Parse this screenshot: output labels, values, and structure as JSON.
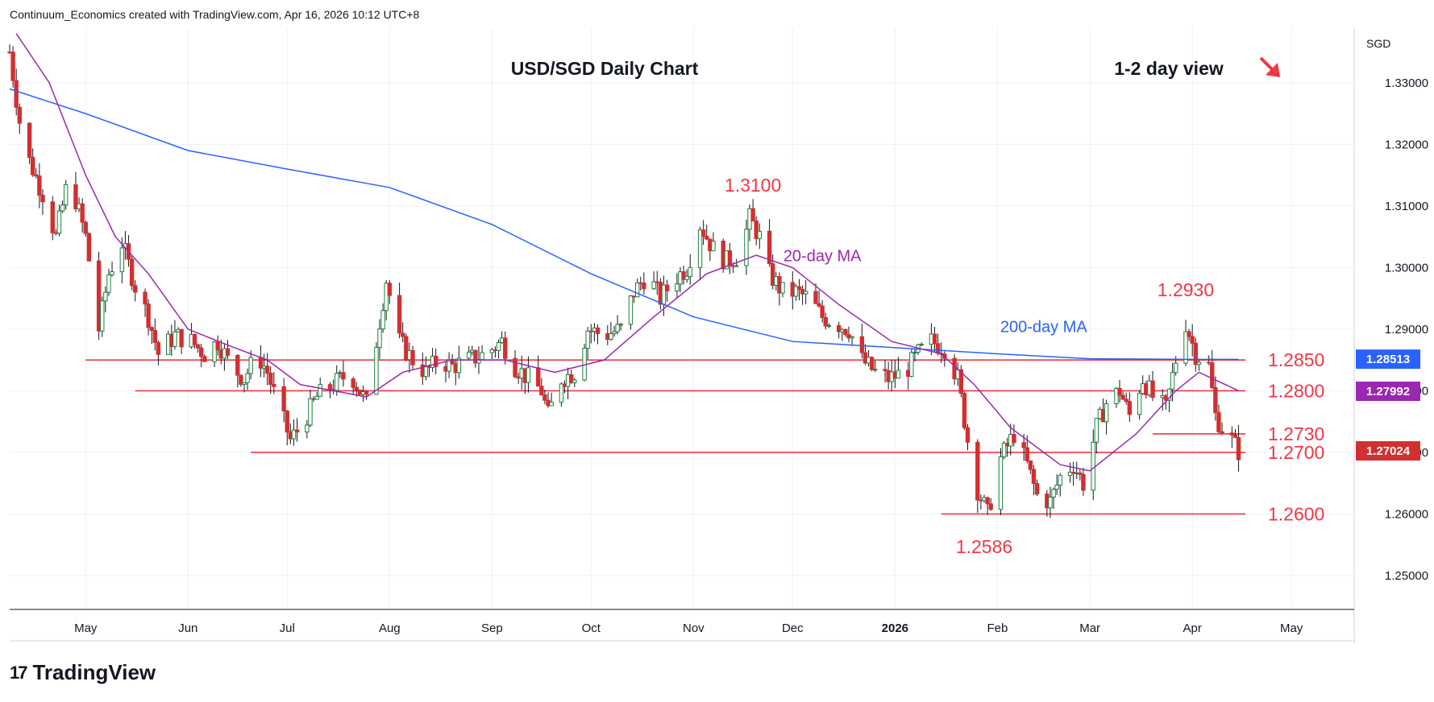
{
  "header": {
    "text": "Continuum_Economics created with TradingView.com, Apr 16, 2026 10:12 UTC+8"
  },
  "brand": {
    "name": "TradingView",
    "icon": "tradingview-logo-icon"
  },
  "colors": {
    "up": "#ffffff",
    "down": "#d32f2f",
    "wick": "#131722",
    "ma20": "#9c27b0",
    "ma200": "#2962ff",
    "level": "#f23645",
    "annotation": "#f23645"
  },
  "chart_data": {
    "type": "candlestick",
    "title": "USD/SGD Daily Chart",
    "view_label": "1-2 day view",
    "view_arrow": "down-right-arrow-icon",
    "currency": "SGD",
    "ylim": [
      1.2445,
      1.339
    ],
    "y_ticks": [
      "1.33000",
      "1.32000",
      "1.31000",
      "1.30000",
      "1.29000",
      "1.28000",
      "1.27000",
      "1.26000",
      "1.25000"
    ],
    "y_tick_values": [
      1.33,
      1.32,
      1.31,
      1.3,
      1.29,
      1.28,
      1.27,
      1.26,
      1.25
    ],
    "x_ticks": [
      {
        "label": "May",
        "date": "2025-05-01"
      },
      {
        "label": "Jun",
        "date": "2025-06-01"
      },
      {
        "label": "Jul",
        "date": "2025-07-01"
      },
      {
        "label": "Aug",
        "date": "2025-08-01"
      },
      {
        "label": "Sep",
        "date": "2025-09-01"
      },
      {
        "label": "Oct",
        "date": "2025-10-01"
      },
      {
        "label": "Nov",
        "date": "2025-11-01"
      },
      {
        "label": "Dec",
        "date": "2025-12-01"
      },
      {
        "label": "2026",
        "date": "2026-01-01"
      },
      {
        "label": "Feb",
        "date": "2026-02-01"
      },
      {
        "label": "Mar",
        "date": "2026-03-01"
      },
      {
        "label": "Apr",
        "date": "2026-04-01"
      },
      {
        "label": "May",
        "date": "2026-05-01"
      }
    ],
    "x_range": [
      "2025-04-08",
      "2026-05-20"
    ],
    "close_path": [
      [
        "2025-04-08",
        1.335
      ],
      [
        "2025-04-12",
        1.32
      ],
      [
        "2025-04-18",
        1.312
      ],
      [
        "2025-04-22",
        1.305
      ],
      [
        "2025-04-26",
        1.315
      ],
      [
        "2025-05-01",
        1.305
      ],
      [
        "2025-05-05",
        1.29
      ],
      [
        "2025-05-08",
        1.299
      ],
      [
        "2025-05-12",
        1.304
      ],
      [
        "2025-05-16",
        1.297
      ],
      [
        "2025-05-20",
        1.292
      ],
      [
        "2025-05-23",
        1.286
      ],
      [
        "2025-05-28",
        1.289
      ],
      [
        "2025-06-02",
        1.288
      ],
      [
        "2025-06-06",
        1.286
      ],
      [
        "2025-06-10",
        1.288
      ],
      [
        "2025-06-14",
        1.284
      ],
      [
        "2025-06-18",
        1.282
      ],
      [
        "2025-06-22",
        1.286
      ],
      [
        "2025-06-25",
        1.283
      ],
      [
        "2025-06-28",
        1.278
      ],
      [
        "2025-07-02",
        1.272
      ],
      [
        "2025-07-06",
        1.275
      ],
      [
        "2025-07-10",
        1.279
      ],
      [
        "2025-07-15",
        1.281
      ],
      [
        "2025-07-20",
        1.283
      ],
      [
        "2025-07-25",
        1.278
      ],
      [
        "2025-07-28",
        1.288
      ],
      [
        "2025-07-31",
        1.298
      ],
      [
        "2025-08-04",
        1.288
      ],
      [
        "2025-08-08",
        1.285
      ],
      [
        "2025-08-12",
        1.283
      ],
      [
        "2025-08-16",
        1.285
      ],
      [
        "2025-08-20",
        1.284
      ],
      [
        "2025-08-25",
        1.285
      ],
      [
        "2025-08-30",
        1.286
      ],
      [
        "2025-09-04",
        1.288
      ],
      [
        "2025-09-08",
        1.284
      ],
      [
        "2025-09-12",
        1.282
      ],
      [
        "2025-09-16",
        1.28
      ],
      [
        "2025-09-18",
        1.276
      ],
      [
        "2025-09-22",
        1.282
      ],
      [
        "2025-09-26",
        1.283
      ],
      [
        "2025-09-30",
        1.29
      ],
      [
        "2025-10-05",
        1.289
      ],
      [
        "2025-10-10",
        1.29
      ],
      [
        "2025-10-14",
        1.296
      ],
      [
        "2025-10-18",
        1.299
      ],
      [
        "2025-10-22",
        1.295
      ],
      [
        "2025-10-26",
        1.298
      ],
      [
        "2025-10-30",
        1.3
      ],
      [
        "2025-11-03",
        1.307
      ],
      [
        "2025-11-07",
        1.303
      ],
      [
        "2025-11-11",
        1.301
      ],
      [
        "2025-11-15",
        1.302
      ],
      [
        "2025-11-18",
        1.308
      ],
      [
        "2025-11-21",
        1.305
      ],
      [
        "2025-11-24",
        1.299
      ],
      [
        "2025-11-28",
        1.296
      ],
      [
        "2025-12-02",
        1.296
      ],
      [
        "2025-12-06",
        1.295
      ],
      [
        "2025-12-10",
        1.292
      ],
      [
        "2025-12-14",
        1.291
      ],
      [
        "2025-12-18",
        1.29
      ],
      [
        "2025-12-22",
        1.285
      ],
      [
        "2025-12-26",
        1.283
      ],
      [
        "2025-12-30",
        1.282
      ],
      [
        "2026-01-04",
        1.283
      ],
      [
        "2026-01-08",
        1.286
      ],
      [
        "2026-01-12",
        1.288
      ],
      [
        "2026-01-16",
        1.287
      ],
      [
        "2026-01-20",
        1.282
      ],
      [
        "2026-01-23",
        1.272
      ],
      [
        "2026-01-26",
        1.264
      ],
      [
        "2026-01-29",
        1.26
      ],
      [
        "2026-02-02",
        1.269
      ],
      [
        "2026-02-06",
        1.273
      ],
      [
        "2026-02-10",
        1.268
      ],
      [
        "2026-02-13",
        1.263
      ],
      [
        "2026-02-17",
        1.262
      ],
      [
        "2026-02-20",
        1.266
      ],
      [
        "2026-02-24",
        1.268
      ],
      [
        "2026-02-27",
        1.265
      ],
      [
        "2026-03-03",
        1.274
      ],
      [
        "2026-03-06",
        1.278
      ],
      [
        "2026-03-10",
        1.28
      ],
      [
        "2026-03-13",
        1.276
      ],
      [
        "2026-03-17",
        1.282
      ],
      [
        "2026-03-20",
        1.279
      ],
      [
        "2026-03-24",
        1.277
      ],
      [
        "2026-03-27",
        1.285
      ],
      [
        "2026-03-30",
        1.291
      ],
      [
        "2026-04-02",
        1.286
      ],
      [
        "2026-04-06",
        1.284
      ],
      [
        "2026-04-08",
        1.276
      ],
      [
        "2026-04-10",
        1.274
      ],
      [
        "2026-04-13",
        1.272
      ],
      [
        "2026-04-15",
        1.2702
      ]
    ],
    "ma20_path": [
      [
        "2025-04-10",
        1.338
      ],
      [
        "2025-04-20",
        1.33
      ],
      [
        "2025-05-01",
        1.315
      ],
      [
        "2025-05-10",
        1.305
      ],
      [
        "2025-05-20",
        1.299
      ],
      [
        "2025-06-01",
        1.29
      ],
      [
        "2025-06-15",
        1.287
      ],
      [
        "2025-06-25",
        1.285
      ],
      [
        "2025-07-05",
        1.281
      ],
      [
        "2025-07-15",
        1.28
      ],
      [
        "2025-07-25",
        1.279
      ],
      [
        "2025-08-05",
        1.283
      ],
      [
        "2025-08-20",
        1.285
      ],
      [
        "2025-09-05",
        1.285
      ],
      [
        "2025-09-20",
        1.283
      ],
      [
        "2025-10-05",
        1.285
      ],
      [
        "2025-10-20",
        1.292
      ],
      [
        "2025-11-05",
        1.299
      ],
      [
        "2025-11-20",
        1.302
      ],
      [
        "2025-12-01",
        1.3
      ],
      [
        "2025-12-15",
        1.294
      ],
      [
        "2025-12-31",
        1.288
      ],
      [
        "2026-01-15",
        1.286
      ],
      [
        "2026-01-25",
        1.281
      ],
      [
        "2026-02-05",
        1.274
      ],
      [
        "2026-02-20",
        1.268
      ],
      [
        "2026-03-01",
        1.267
      ],
      [
        "2026-03-15",
        1.273
      ],
      [
        "2026-03-27",
        1.28
      ],
      [
        "2026-04-03",
        1.283
      ],
      [
        "2026-04-15",
        1.28
      ]
    ],
    "ma200_path": [
      [
        "2025-04-08",
        1.329
      ],
      [
        "2025-05-01",
        1.325
      ],
      [
        "2025-06-01",
        1.319
      ],
      [
        "2025-07-01",
        1.316
      ],
      [
        "2025-08-01",
        1.313
      ],
      [
        "2025-09-01",
        1.307
      ],
      [
        "2025-10-01",
        1.299
      ],
      [
        "2025-11-01",
        1.292
      ],
      [
        "2025-12-01",
        1.288
      ],
      [
        "2026-01-01",
        1.287
      ],
      [
        "2026-02-01",
        1.286
      ],
      [
        "2026-03-01",
        1.2852
      ],
      [
        "2026-04-01",
        1.2851
      ],
      [
        "2026-04-15",
        1.2851
      ]
    ],
    "levels": [
      {
        "label": "1.2850",
        "value": 1.285,
        "from": "2025-05-01"
      },
      {
        "label": "1.2800",
        "value": 1.28,
        "from": "2025-05-16"
      },
      {
        "label": "1.2730",
        "value": 1.273,
        "from": "2026-03-20"
      },
      {
        "label": "1.2700",
        "value": 1.27,
        "from": "2025-06-20"
      },
      {
        "label": "1.2600",
        "value": 1.26,
        "from": "2026-01-15"
      }
    ],
    "annotations": [
      {
        "text": "1.3100",
        "date": "2025-11-19",
        "value": 1.31
      },
      {
        "text": "1.2930",
        "date": "2026-03-30",
        "value": 1.293
      },
      {
        "text": "1.2586",
        "date": "2026-01-28",
        "value": 1.2586
      }
    ],
    "series_labels": [
      {
        "text": "20-day MA",
        "date": "2025-12-10",
        "value": 1.301,
        "color": "#9c27b0"
      },
      {
        "text": "200-day MA",
        "date": "2026-02-15",
        "value": 1.2895,
        "color": "#2962ff"
      }
    ],
    "price_badges": [
      {
        "text": "1.28513",
        "value": 1.28513,
        "color": "#2962ff"
      },
      {
        "text": "1.27992",
        "value": 1.27992,
        "color": "#9c27b0"
      },
      {
        "text": "1.27024",
        "value": 1.27024,
        "color": "#d32f2f"
      }
    ]
  }
}
